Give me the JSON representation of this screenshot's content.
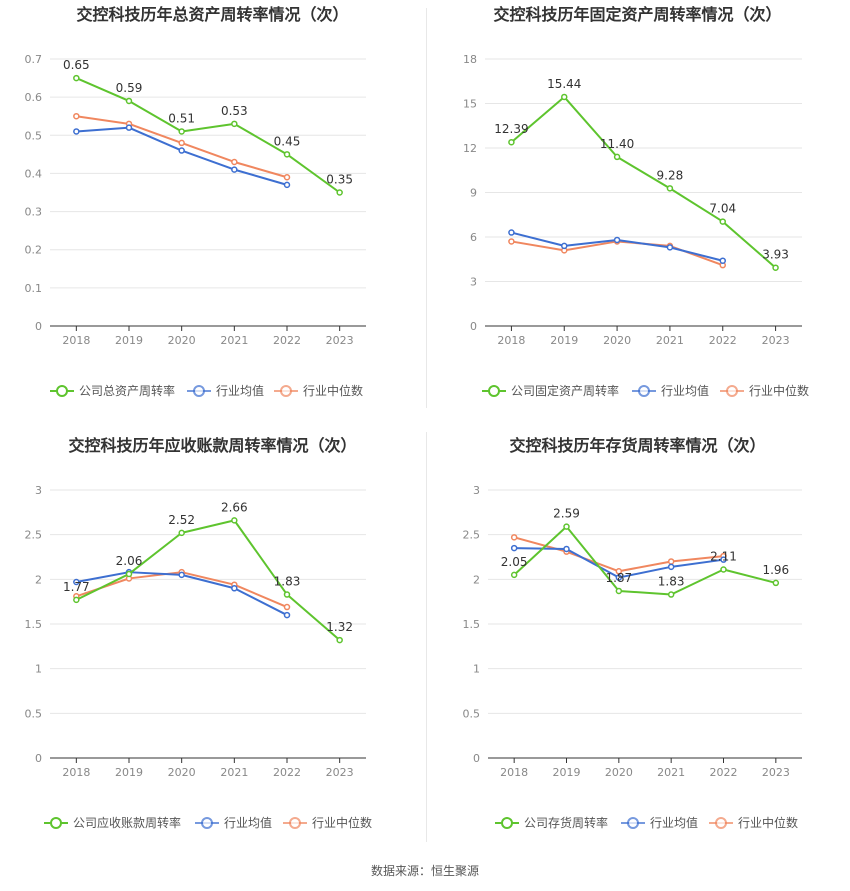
{
  "colors": {
    "company": "#5ec42e",
    "industry_avg": "#3d6fd1",
    "industry_median": "#f0875f",
    "grid": "#e6e6e6",
    "axis": "#333333",
    "tick": "#888888",
    "title": "#333333"
  },
  "legend_icon": "circle-line-icon",
  "source": "数据来源：恒生聚源",
  "chart_data": [
    {
      "type": "line",
      "title": "交控科技历年总资产周转率情况（次）",
      "categories": [
        "2018",
        "2019",
        "2020",
        "2021",
        "2022",
        "2023"
      ],
      "ylim": [
        0,
        0.7
      ],
      "yticks": [
        "0",
        "0.1",
        "0.2",
        "0.3",
        "0.4",
        "0.5",
        "0.6",
        "0.7"
      ],
      "legend_position": "bottom",
      "series": [
        {
          "name": "公司总资产周转率",
          "values": [
            0.65,
            0.59,
            0.51,
            0.53,
            0.45,
            0.35
          ],
          "labels": [
            "0.65",
            "0.59",
            "0.51",
            "0.53",
            "0.45",
            "0.35"
          ]
        },
        {
          "name": "行业均值",
          "values": [
            0.51,
            0.52,
            0.46,
            0.41,
            0.37,
            null
          ]
        },
        {
          "name": "行业中位数",
          "values": [
            0.55,
            0.53,
            0.48,
            0.43,
            0.39,
            null
          ]
        }
      ]
    },
    {
      "type": "line",
      "title": "交控科技历年固定资产周转率情况（次）",
      "categories": [
        "2018",
        "2019",
        "2020",
        "2021",
        "2022",
        "2023"
      ],
      "ylim": [
        0,
        18
      ],
      "yticks": [
        "0",
        "3",
        "6",
        "9",
        "12",
        "15",
        "18"
      ],
      "legend_position": "bottom",
      "series": [
        {
          "name": "公司固定资产周转率",
          "values": [
            12.39,
            15.44,
            11.4,
            9.28,
            7.04,
            3.93
          ],
          "labels": [
            "12.39",
            "15.44",
            "11.40",
            "9.28",
            "7.04",
            "3.93"
          ]
        },
        {
          "name": "行业均值",
          "values": [
            6.3,
            5.4,
            5.8,
            5.3,
            4.4,
            null
          ]
        },
        {
          "name": "行业中位数",
          "values": [
            5.7,
            5.1,
            5.7,
            5.4,
            4.1,
            null
          ]
        }
      ]
    },
    {
      "type": "line",
      "title": "交控科技历年应收账款周转率情况（次）",
      "categories": [
        "2018",
        "2019",
        "2020",
        "2021",
        "2022",
        "2023"
      ],
      "ylim": [
        0,
        3
      ],
      "yticks": [
        "0",
        "0.5",
        "1",
        "1.5",
        "2",
        "2.5",
        "3"
      ],
      "legend_position": "bottom",
      "series": [
        {
          "name": "公司应收账款周转率",
          "values": [
            1.77,
            2.06,
            2.52,
            2.66,
            1.83,
            1.32
          ],
          "labels": [
            "1.77",
            "2.06",
            "2.52",
            "2.66",
            "1.83",
            "1.32"
          ]
        },
        {
          "name": "行业均值",
          "values": [
            1.97,
            2.08,
            2.05,
            1.9,
            1.6,
            null
          ]
        },
        {
          "name": "行业中位数",
          "values": [
            1.81,
            2.01,
            2.08,
            1.94,
            1.69,
            null
          ]
        }
      ]
    },
    {
      "type": "line",
      "title": "交控科技历年存货周转率情况（次）",
      "categories": [
        "2018",
        "2019",
        "2020",
        "2021",
        "2022",
        "2023"
      ],
      "ylim": [
        0,
        3
      ],
      "yticks": [
        "0",
        "0.5",
        "1",
        "1.5",
        "2",
        "2.5",
        "3"
      ],
      "legend_position": "bottom",
      "series": [
        {
          "name": "公司存货周转率",
          "values": [
            2.05,
            2.59,
            1.87,
            1.83,
            2.11,
            1.96
          ],
          "labels": [
            "2.05",
            "2.59",
            "1.87",
            "1.83",
            "2.11",
            "1.96"
          ]
        },
        {
          "name": "行业均值",
          "values": [
            2.35,
            2.34,
            2.02,
            2.14,
            2.22,
            null
          ]
        },
        {
          "name": "行业中位数",
          "values": [
            2.47,
            2.31,
            2.09,
            2.2,
            2.26,
            null
          ]
        }
      ]
    }
  ]
}
